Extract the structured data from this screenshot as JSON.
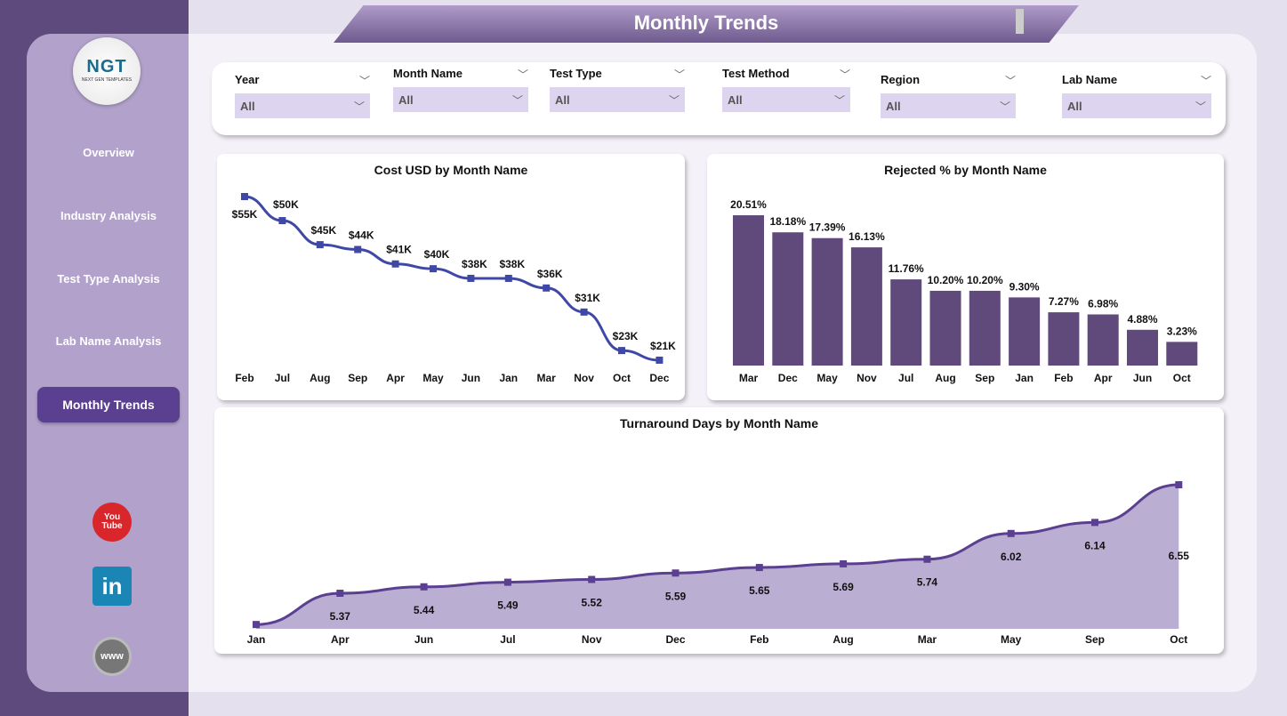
{
  "title": "Monthly Trends",
  "logo": {
    "text": "NGT",
    "subtext": "NEXT GEN TEMPLATES"
  },
  "nav": [
    {
      "label": "Overview"
    },
    {
      "label": "Industry Analysis"
    },
    {
      "label": "Test Type Analysis"
    },
    {
      "label": "Lab Name Analysis"
    },
    {
      "label": "Monthly Trends",
      "active": true
    }
  ],
  "social": [
    {
      "icon": "youtube-icon",
      "label": "You Tube",
      "color": "#d9262a"
    },
    {
      "icon": "linkedin-icon",
      "label": "in",
      "color": "#1b86b5"
    },
    {
      "icon": "globe-icon",
      "label": "www",
      "color": "#777777"
    }
  ],
  "filters": [
    {
      "label": "Year",
      "value": "All"
    },
    {
      "label": "Month Name",
      "value": "All"
    },
    {
      "label": "Test Type",
      "value": "All"
    },
    {
      "label": "Test Method",
      "value": "All"
    },
    {
      "label": "Region",
      "value": "All"
    },
    {
      "label": "Lab Name",
      "value": "All"
    }
  ],
  "chart_data": [
    {
      "type": "line",
      "title": "Cost USD by Month Name",
      "categories": [
        "Feb",
        "Jul",
        "Aug",
        "Sep",
        "Apr",
        "May",
        "Jun",
        "Jan",
        "Mar",
        "Nov",
        "Oct",
        "Dec"
      ],
      "values": [
        55,
        50,
        45,
        44,
        41,
        40,
        38,
        38,
        36,
        31,
        23,
        21
      ],
      "labels": [
        "$55K",
        "$50K",
        "$45K",
        "$44K",
        "$41K",
        "$40K",
        "$38K",
        "$38K",
        "$36K",
        "$31K",
        "$23K",
        "$21K"
      ],
      "unit": "K USD",
      "color": "#3f48a6"
    },
    {
      "type": "bar",
      "title": "Rejected % by Month Name",
      "categories": [
        "Mar",
        "Dec",
        "May",
        "Nov",
        "Jul",
        "Aug",
        "Sep",
        "Jan",
        "Feb",
        "Apr",
        "Jun",
        "Oct"
      ],
      "values": [
        20.51,
        18.18,
        17.39,
        16.13,
        11.76,
        10.2,
        10.2,
        9.3,
        7.27,
        6.98,
        4.88,
        3.23
      ],
      "labels": [
        "20.51%",
        "18.18%",
        "17.39%",
        "16.13%",
        "11.76%",
        "10.20%",
        "10.20%",
        "9.30%",
        "7.27%",
        "6.98%",
        "4.88%",
        "3.23%"
      ],
      "color": "#604a7b"
    },
    {
      "type": "area",
      "title": "Turnaround Days by Month Name",
      "categories": [
        "Jan",
        "Apr",
        "Jun",
        "Jul",
        "Nov",
        "Dec",
        "Feb",
        "Aug",
        "Mar",
        "May",
        "Sep",
        "Oct"
      ],
      "values": [
        5.03,
        5.37,
        5.44,
        5.49,
        5.52,
        5.59,
        5.65,
        5.69,
        5.74,
        6.02,
        6.14,
        6.55
      ],
      "labels": [
        "",
        "5.37",
        "5.44",
        "5.49",
        "5.52",
        "5.59",
        "5.65",
        "5.69",
        "5.74",
        "6.02",
        "6.14",
        "6.55"
      ],
      "color": "#5b3f91",
      "fill": "#bbaed3"
    }
  ]
}
